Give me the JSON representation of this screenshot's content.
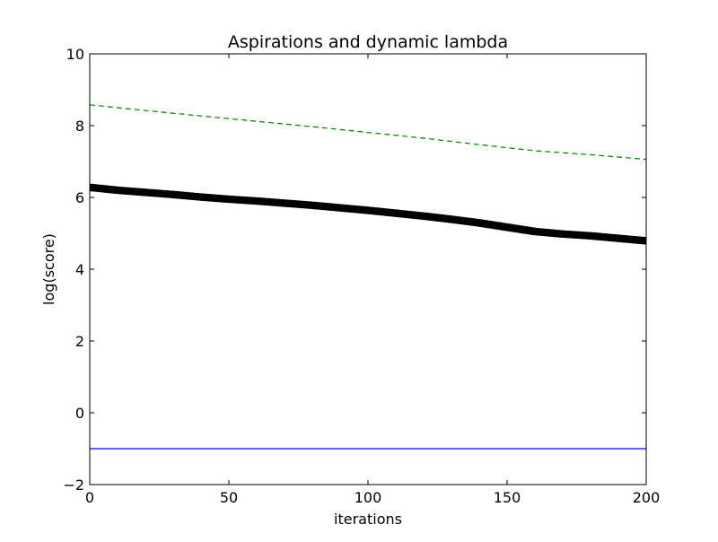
{
  "chart_data": {
    "type": "line",
    "title": "Aspirations and dynamic lambda",
    "xlabel": "iterations",
    "ylabel": "log(score)",
    "xlim": [
      0,
      200
    ],
    "ylim": [
      -2,
      10
    ],
    "xticks": [
      0,
      50,
      100,
      150,
      200
    ],
    "yticks": [
      -2,
      0,
      2,
      4,
      6,
      8,
      10
    ],
    "xtick_labels": [
      "0",
      "50",
      "100",
      "150",
      "200"
    ],
    "ytick_labels": [
      "−2",
      "0",
      "2",
      "4",
      "6",
      "8",
      "10"
    ],
    "grid": false,
    "legend": "none",
    "series": [
      {
        "style": "dashed",
        "color": "#008000",
        "x": [
          0,
          20,
          40,
          60,
          80,
          100,
          120,
          140,
          160,
          180,
          200
        ],
        "y": [
          8.58,
          8.42,
          8.27,
          8.12,
          7.97,
          7.81,
          7.65,
          7.47,
          7.3,
          7.19,
          7.06
        ]
      },
      {
        "style": "markers",
        "color": "#000000",
        "x": [
          0,
          10,
          20,
          30,
          40,
          50,
          60,
          70,
          80,
          90,
          100,
          110,
          120,
          130,
          140,
          150,
          160,
          170,
          180,
          190,
          200
        ],
        "y": [
          6.28,
          6.2,
          6.14,
          6.08,
          6.01,
          5.95,
          5.9,
          5.84,
          5.78,
          5.71,
          5.64,
          5.56,
          5.48,
          5.39,
          5.29,
          5.17,
          5.05,
          4.98,
          4.93,
          4.86,
          4.79
        ]
      },
      {
        "style": "solid",
        "color": "#0000ff",
        "x": [
          0,
          200
        ],
        "y": [
          -1.0,
          -1.0
        ]
      }
    ]
  }
}
